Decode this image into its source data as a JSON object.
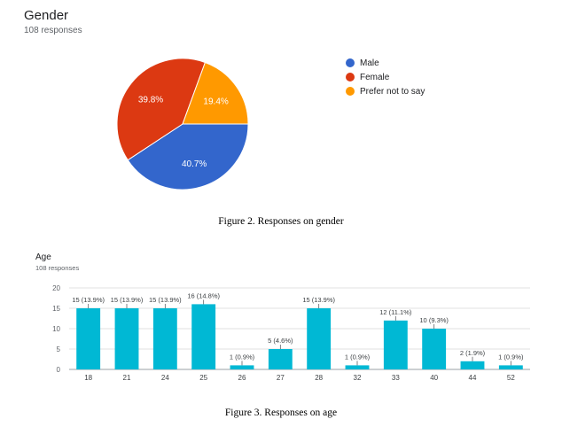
{
  "chart_data": [
    {
      "type": "pie",
      "title": "Gender",
      "subtitle": "108 responses",
      "legend_position": "right",
      "slices": [
        {
          "label": "Male",
          "percent": 40.7,
          "color": "#3366cc"
        },
        {
          "label": "Female",
          "percent": 39.8,
          "color": "#dc3912"
        },
        {
          "label": "Prefer not to say",
          "percent": 19.4,
          "color": "#ff9900"
        }
      ],
      "caption": "Figure 2. Responses on gender"
    },
    {
      "type": "bar",
      "title": "Age",
      "subtitle": "108 responses",
      "categories": [
        "18",
        "21",
        "24",
        "25",
        "26",
        "27",
        "28",
        "32",
        "33",
        "40",
        "44",
        "52"
      ],
      "values": [
        15,
        15,
        15,
        16,
        1,
        5,
        15,
        1,
        12,
        10,
        2,
        1
      ],
      "data_labels": [
        "15 (13.9%)",
        "15 (13.9%)",
        "15 (13.9%)",
        "16 (14.8%)",
        "1 (0.9%)",
        "5 (4.6%)",
        "15 (13.9%)",
        "1 (0.9%)",
        "12 (11.1%)",
        "10 (9.3%)",
        "2 (1.9%)",
        "1 (0.9%)"
      ],
      "yticks": [
        "0",
        "5",
        "10",
        "15",
        "20"
      ],
      "ylim": [
        0,
        20
      ],
      "grid": true,
      "bar_color": "#00b8d4",
      "caption": "Figure 3. Responses on age"
    }
  ]
}
